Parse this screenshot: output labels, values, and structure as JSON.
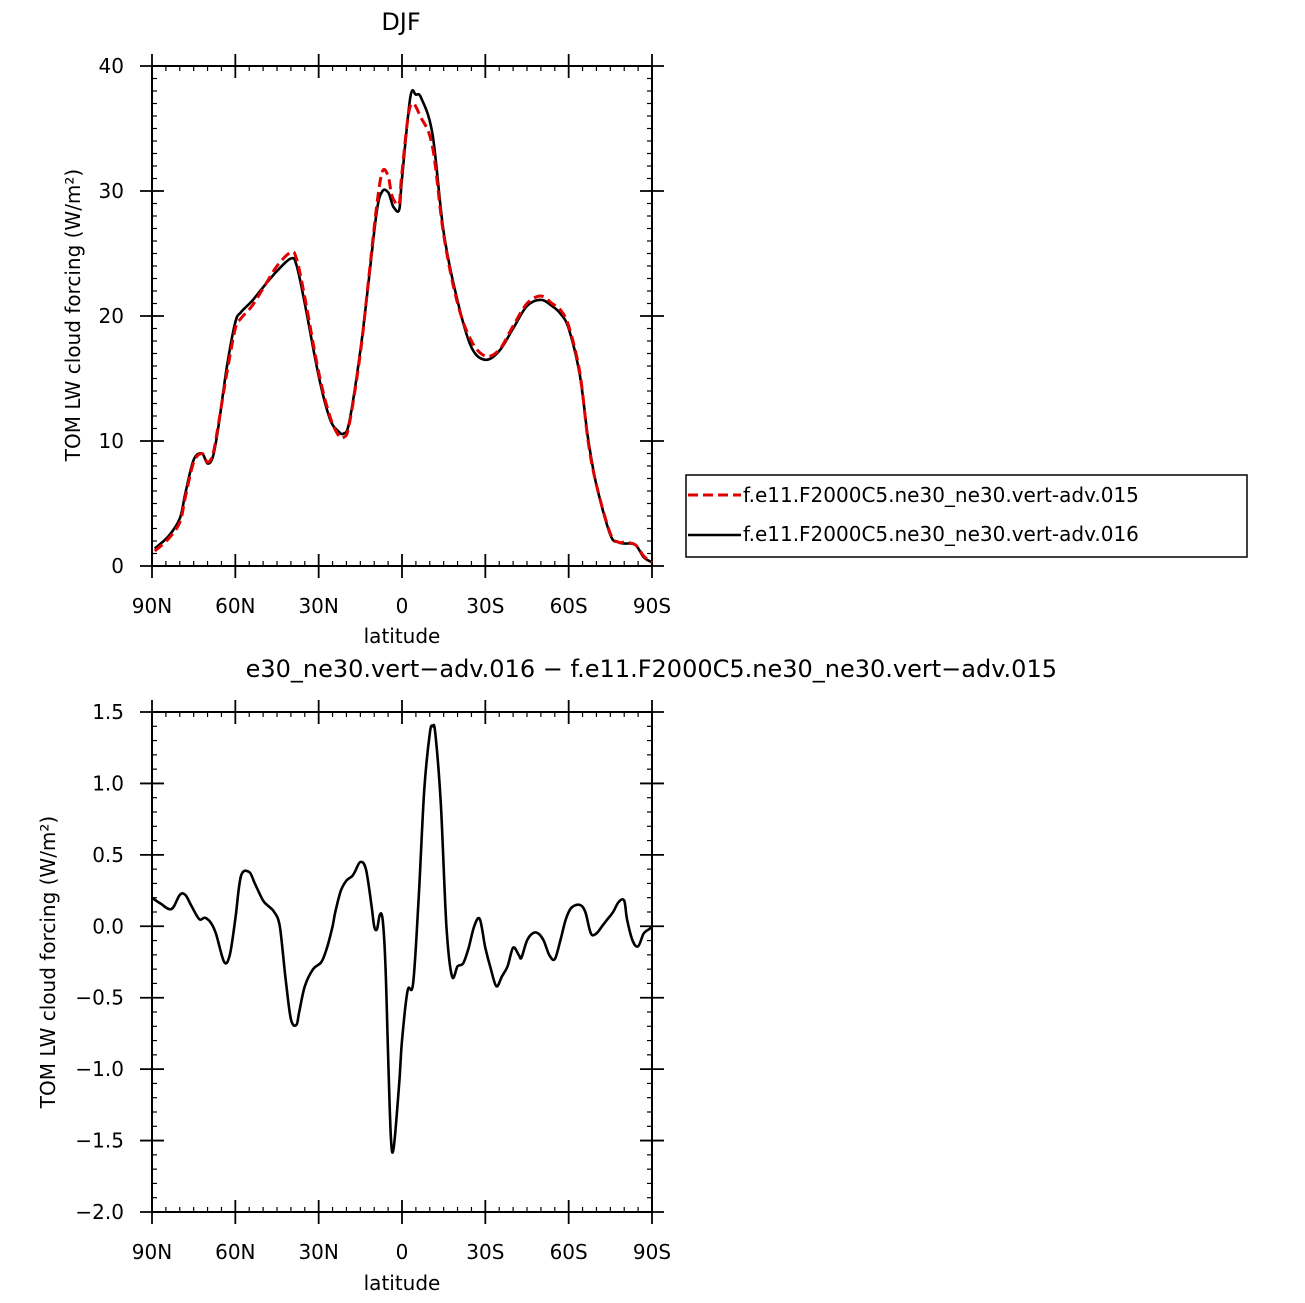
{
  "chart_data": [
    {
      "type": "line",
      "title": "DJF",
      "xlabel": "latitude",
      "ylabel": "TOM LW cloud forcing (W/m²)",
      "xlim": [
        90,
        -90
      ],
      "ylim": [
        0,
        40
      ],
      "x_ticks": [
        90,
        60,
        30,
        0,
        -30,
        -60,
        -90
      ],
      "x_tick_labels": [
        "90N",
        "60N",
        "30N",
        "0",
        "30S",
        "60S",
        "90S"
      ],
      "y_ticks": [
        0,
        10,
        20,
        30,
        40
      ],
      "y_tick_labels": [
        "0",
        "10",
        "20",
        "30",
        "40"
      ],
      "legend_position": "right",
      "series": [
        {
          "name": "f.e11.F2000C5.ne30_ne30.vert-adv.015",
          "color": "#e00000",
          "dash": "dashed",
          "x": [
            89,
            84,
            80,
            78,
            75,
            72,
            70,
            68,
            66,
            63,
            60,
            58,
            54,
            50,
            45,
            40,
            38,
            35,
            30,
            26,
            23,
            21,
            19,
            15,
            12,
            9,
            7,
            5,
            4,
            3,
            1,
            0,
            -3,
            -7,
            -11,
            -15,
            -20,
            -25,
            -30,
            -35,
            -40,
            -45,
            -50,
            -54,
            -57,
            -60,
            -64,
            -67,
            -70,
            -75,
            -78,
            -80,
            -84,
            -87,
            -90
          ],
          "y": [
            1.2,
            2.2,
            3.5,
            5.5,
            8.3,
            9.0,
            8.3,
            9.0,
            11.5,
            15.5,
            19.0,
            19.8,
            20.8,
            22.2,
            24.0,
            25.1,
            24.6,
            21.5,
            15.5,
            12.0,
            10.5,
            10.3,
            11.3,
            17.0,
            23.0,
            29.0,
            31.6,
            31.2,
            30.0,
            29.3,
            29.0,
            31.5,
            36.8,
            35.8,
            33.5,
            26.5,
            21.0,
            18.0,
            16.8,
            17.3,
            19.2,
            21.0,
            21.6,
            21.0,
            20.5,
            19.2,
            15.5,
            10.0,
            6.5,
            2.6,
            1.9,
            1.9,
            1.7,
            0.8,
            0.3
          ]
        },
        {
          "name": "f.e11.F2000C5.ne30_ne30.vert-adv.016",
          "color": "#000000",
          "dash": "solid",
          "x": [
            89,
            84,
            80,
            78,
            75,
            72,
            70,
            68,
            66,
            63,
            60,
            58,
            54,
            50,
            45,
            40,
            38,
            35,
            30,
            26,
            23,
            21,
            19,
            15,
            12,
            9,
            7,
            5,
            4,
            3,
            1,
            0,
            -3,
            -5,
            -7,
            -11,
            -15,
            -20,
            -25,
            -30,
            -35,
            -40,
            -45,
            -50,
            -54,
            -57,
            -60,
            -64,
            -67,
            -70,
            -75,
            -78,
            -80,
            -84,
            -87,
            -90
          ],
          "y": [
            1.4,
            2.4,
            3.8,
            5.8,
            8.5,
            9.0,
            8.2,
            8.8,
            11.3,
            16.0,
            19.5,
            20.3,
            21.2,
            22.3,
            23.6,
            24.6,
            24.1,
            21.0,
            15.2,
            11.8,
            10.8,
            10.6,
            11.5,
            17.2,
            22.8,
            28.5,
            30.0,
            29.9,
            29.3,
            28.7,
            28.5,
            31.0,
            37.5,
            37.7,
            37.4,
            34.5,
            26.7,
            21.2,
            17.5,
            16.5,
            17.2,
            19.0,
            20.8,
            21.3,
            20.8,
            20.2,
            19.0,
            15.3,
            10.2,
            6.5,
            2.5,
            1.9,
            1.8,
            1.7,
            0.7,
            0.3
          ]
        }
      ]
    },
    {
      "type": "line",
      "title": "f.e11.F2000C5.ne30_ne30.vert-adv.016 - f.e11.F2000C5.ne30_ne30.vert-adv.015",
      "title_visible": "e30_ne30.vert−adv.016 − f.e11.F2000C5.ne30_ne30.vert−adv.015",
      "xlabel": "latitude",
      "ylabel": "TOM LW cloud forcing (W/m²)",
      "xlim": [
        90,
        -90
      ],
      "ylim": [
        -2.0,
        1.5
      ],
      "x_ticks": [
        90,
        60,
        30,
        0,
        -30,
        -60,
        -90
      ],
      "x_tick_labels": [
        "90N",
        "60N",
        "30N",
        "0",
        "30S",
        "60S",
        "90S"
      ],
      "y_ticks": [
        -2.0,
        -1.5,
        -1.0,
        -0.5,
        0.0,
        0.5,
        1.0,
        1.5
      ],
      "y_tick_labels": [
        "−2.0",
        "−1.5",
        "−1.0",
        "−0.5",
        "0.0",
        "0.5",
        "1.0",
        "1.5"
      ],
      "series": [
        {
          "color": "#000000",
          "dash": "solid",
          "x": [
            90,
            87,
            83,
            80,
            78,
            76,
            73,
            71,
            69,
            67,
            64,
            62,
            60,
            58,
            55,
            53,
            50,
            48,
            46,
            44,
            42,
            40,
            38,
            37,
            35,
            32,
            29,
            27,
            25,
            24,
            22,
            20,
            18,
            17,
            15,
            13,
            11,
            10,
            9,
            8,
            7,
            6,
            5,
            4,
            3,
            1,
            0,
            -2,
            -4,
            -6,
            -8,
            -10,
            -11,
            -12,
            -14,
            -16,
            -18,
            -20,
            -22,
            -24,
            -26,
            -28,
            -30,
            -32,
            -34,
            -36,
            -38,
            -40,
            -42,
            -43,
            -45,
            -47,
            -49,
            -51,
            -53,
            -55,
            -57,
            -59,
            -61,
            -64,
            -66,
            -68,
            -70,
            -72,
            -74,
            -76,
            -78,
            -80,
            -81,
            -83,
            -85,
            -87,
            -89,
            -90
          ],
          "y": [
            0.2,
            0.16,
            0.12,
            0.22,
            0.22,
            0.15,
            0.05,
            0.06,
            0.03,
            -0.05,
            -0.25,
            -0.2,
            0.05,
            0.35,
            0.38,
            0.3,
            0.18,
            0.14,
            0.1,
            0.0,
            -0.35,
            -0.65,
            -0.69,
            -0.6,
            -0.42,
            -0.3,
            -0.25,
            -0.15,
            0.0,
            0.1,
            0.25,
            0.32,
            0.35,
            0.38,
            0.45,
            0.4,
            0.15,
            0.0,
            -0.02,
            0.08,
            0.05,
            -0.25,
            -0.9,
            -1.48,
            -1.55,
            -1.1,
            -0.8,
            -0.45,
            -0.4,
            0.2,
            0.95,
            1.35,
            1.4,
            1.35,
            0.85,
            0.0,
            -0.35,
            -0.28,
            -0.26,
            -0.15,
            0.0,
            0.05,
            -0.15,
            -0.3,
            -0.42,
            -0.35,
            -0.28,
            -0.15,
            -0.2,
            -0.22,
            -0.1,
            -0.05,
            -0.05,
            -0.1,
            -0.2,
            -0.23,
            -0.1,
            0.05,
            0.13,
            0.15,
            0.1,
            -0.05,
            -0.05,
            0.0,
            0.05,
            0.1,
            0.17,
            0.18,
            0.05,
            -0.1,
            -0.14,
            -0.05,
            -0.02,
            0.0
          ]
        }
      ]
    }
  ]
}
